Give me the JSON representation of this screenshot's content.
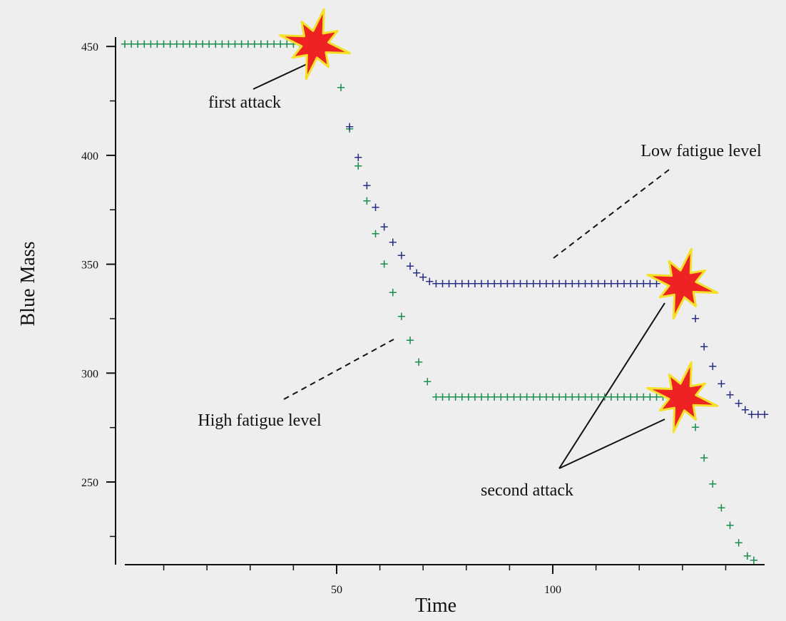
{
  "chart_data": {
    "type": "scatter",
    "title": "",
    "xlabel": "Time",
    "ylabel": "Blue Mass",
    "xlim": [
      1,
      149
    ],
    "ylim": [
      214,
      453
    ],
    "x_ticks": [
      50,
      100
    ],
    "x_minor_ticks": [
      10,
      20,
      30,
      40,
      60,
      70,
      80,
      90,
      110,
      120,
      130,
      140
    ],
    "y_ticks": [
      250,
      300,
      350,
      400,
      450
    ],
    "y_minor_ticks": [
      225,
      275,
      325,
      375,
      425
    ],
    "grid": false,
    "colors": {
      "high_fatigue": "#1a8f4e",
      "low_fatigue": "#2a2f86",
      "explosion_fill": "#ee2222",
      "explosion_stroke": "#f5e12a"
    },
    "series": [
      {
        "key": "high",
        "color": "#1a8f4e",
        "points": [
          [
            1,
            451
          ],
          [
            2.5,
            451
          ],
          [
            4,
            451
          ],
          [
            5.5,
            451
          ],
          [
            7,
            451
          ],
          [
            8.5,
            451
          ],
          [
            10,
            451
          ],
          [
            11.5,
            451
          ],
          [
            13,
            451
          ],
          [
            14.5,
            451
          ],
          [
            16,
            451
          ],
          [
            17.5,
            451
          ],
          [
            19,
            451
          ],
          [
            20.5,
            451
          ],
          [
            22,
            451
          ],
          [
            23.5,
            451
          ],
          [
            25,
            451
          ],
          [
            26.5,
            451
          ],
          [
            28,
            451
          ],
          [
            29.5,
            451
          ],
          [
            31,
            451
          ],
          [
            32.5,
            451
          ],
          [
            34,
            451
          ],
          [
            35.5,
            451
          ],
          [
            37,
            451
          ],
          [
            38.5,
            451
          ],
          [
            40,
            451
          ],
          [
            41.5,
            451
          ],
          [
            51,
            431
          ],
          [
            53,
            412
          ],
          [
            55,
            395
          ],
          [
            57,
            379
          ],
          [
            59,
            364
          ],
          [
            61,
            350
          ],
          [
            63,
            337
          ],
          [
            65,
            326
          ],
          [
            67,
            315
          ],
          [
            69,
            305
          ],
          [
            71,
            296
          ],
          [
            73,
            289
          ],
          [
            74.5,
            289
          ],
          [
            76,
            289
          ],
          [
            77.5,
            289
          ],
          [
            79,
            289
          ],
          [
            80.5,
            289
          ],
          [
            82,
            289
          ],
          [
            83.5,
            289
          ],
          [
            85,
            289
          ],
          [
            86.5,
            289
          ],
          [
            88,
            289
          ],
          [
            89.5,
            289
          ],
          [
            91,
            289
          ],
          [
            92.5,
            289
          ],
          [
            94,
            289
          ],
          [
            95.5,
            289
          ],
          [
            97,
            289
          ],
          [
            98.5,
            289
          ],
          [
            100,
            289
          ],
          [
            101.5,
            289
          ],
          [
            103,
            289
          ],
          [
            104.5,
            289
          ],
          [
            106,
            289
          ],
          [
            107.5,
            289
          ],
          [
            109,
            289
          ],
          [
            110.5,
            289
          ],
          [
            112,
            289
          ],
          [
            113.5,
            289
          ],
          [
            115,
            289
          ],
          [
            116.5,
            289
          ],
          [
            118,
            289
          ],
          [
            119.5,
            289
          ],
          [
            121,
            289
          ],
          [
            122.5,
            289
          ],
          [
            124,
            289
          ],
          [
            125.5,
            289
          ],
          [
            127,
            289
          ],
          [
            133,
            275
          ],
          [
            135,
            261
          ],
          [
            137,
            249
          ],
          [
            139,
            238
          ],
          [
            141,
            230
          ],
          [
            143,
            222
          ],
          [
            145,
            216
          ],
          [
            146.5,
            214
          ]
        ]
      },
      {
        "key": "low",
        "color": "#2a2f86",
        "points": [
          [
            53,
            413
          ],
          [
            55,
            399
          ],
          [
            57,
            386
          ],
          [
            59,
            376
          ],
          [
            61,
            367
          ],
          [
            63,
            360
          ],
          [
            65,
            354
          ],
          [
            67,
            349
          ],
          [
            68.5,
            346
          ],
          [
            70,
            344
          ],
          [
            71.5,
            342
          ],
          [
            73,
            341
          ],
          [
            74.5,
            341
          ],
          [
            76,
            341
          ],
          [
            77.5,
            341
          ],
          [
            79,
            341
          ],
          [
            80.5,
            341
          ],
          [
            82,
            341
          ],
          [
            83.5,
            341
          ],
          [
            85,
            341
          ],
          [
            86.5,
            341
          ],
          [
            88,
            341
          ],
          [
            89.5,
            341
          ],
          [
            91,
            341
          ],
          [
            92.5,
            341
          ],
          [
            94,
            341
          ],
          [
            95.5,
            341
          ],
          [
            97,
            341
          ],
          [
            98.5,
            341
          ],
          [
            100,
            341
          ],
          [
            101.5,
            341
          ],
          [
            103,
            341
          ],
          [
            104.5,
            341
          ],
          [
            106,
            341
          ],
          [
            107.5,
            341
          ],
          [
            109,
            341
          ],
          [
            110.5,
            341
          ],
          [
            112,
            341
          ],
          [
            113.5,
            341
          ],
          [
            115,
            341
          ],
          [
            116.5,
            341
          ],
          [
            118,
            341
          ],
          [
            119.5,
            341
          ],
          [
            121,
            341
          ],
          [
            122.5,
            341
          ],
          [
            124,
            341
          ],
          [
            133,
            325
          ],
          [
            135,
            312
          ],
          [
            137,
            303
          ],
          [
            139,
            295
          ],
          [
            141,
            290
          ],
          [
            143,
            286
          ],
          [
            144.5,
            283
          ],
          [
            146,
            281
          ],
          [
            147.5,
            281
          ],
          [
            149,
            281
          ]
        ]
      }
    ],
    "annotations": {
      "first_attack": "first attack",
      "second_attack": "second attack",
      "high_fatigue": "High fatigue level",
      "low_fatigue": "Low fatigue level"
    },
    "explosions": [
      {
        "name": "first-attack-explosion",
        "x": 45,
        "y": 451
      },
      {
        "name": "second-attack-explosion-low",
        "x": 130,
        "y": 341
      },
      {
        "name": "second-attack-explosion-high",
        "x": 130,
        "y": 289
      }
    ]
  }
}
